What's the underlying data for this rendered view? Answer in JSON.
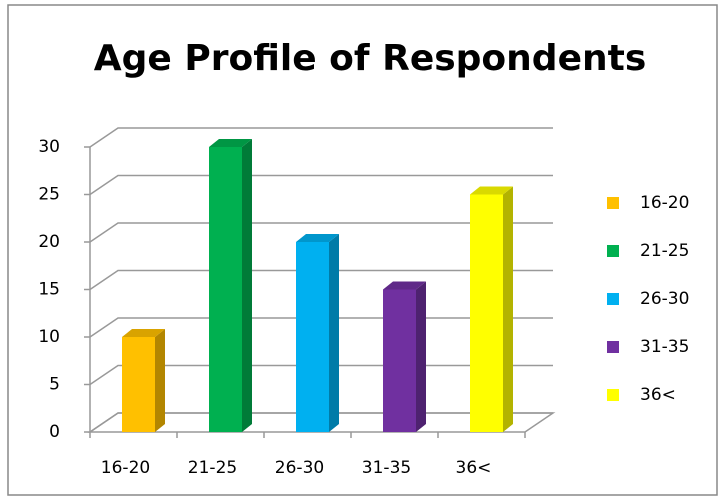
{
  "chart_data": {
    "type": "bar3d",
    "title": "Age Profile of Respondents",
    "categories": [
      "16-20",
      "21-25",
      "26-30",
      "31-35",
      "36<"
    ],
    "values": [
      10,
      30,
      20,
      15,
      25
    ],
    "colors": [
      "#FFC000",
      "#00B050",
      "#00B0F0",
      "#7030A0",
      "#FFFF00"
    ],
    "ylim": [
      0,
      30
    ],
    "yticks": [
      0,
      5,
      10,
      15,
      20,
      25,
      30
    ],
    "grid": true,
    "legend": "right"
  }
}
